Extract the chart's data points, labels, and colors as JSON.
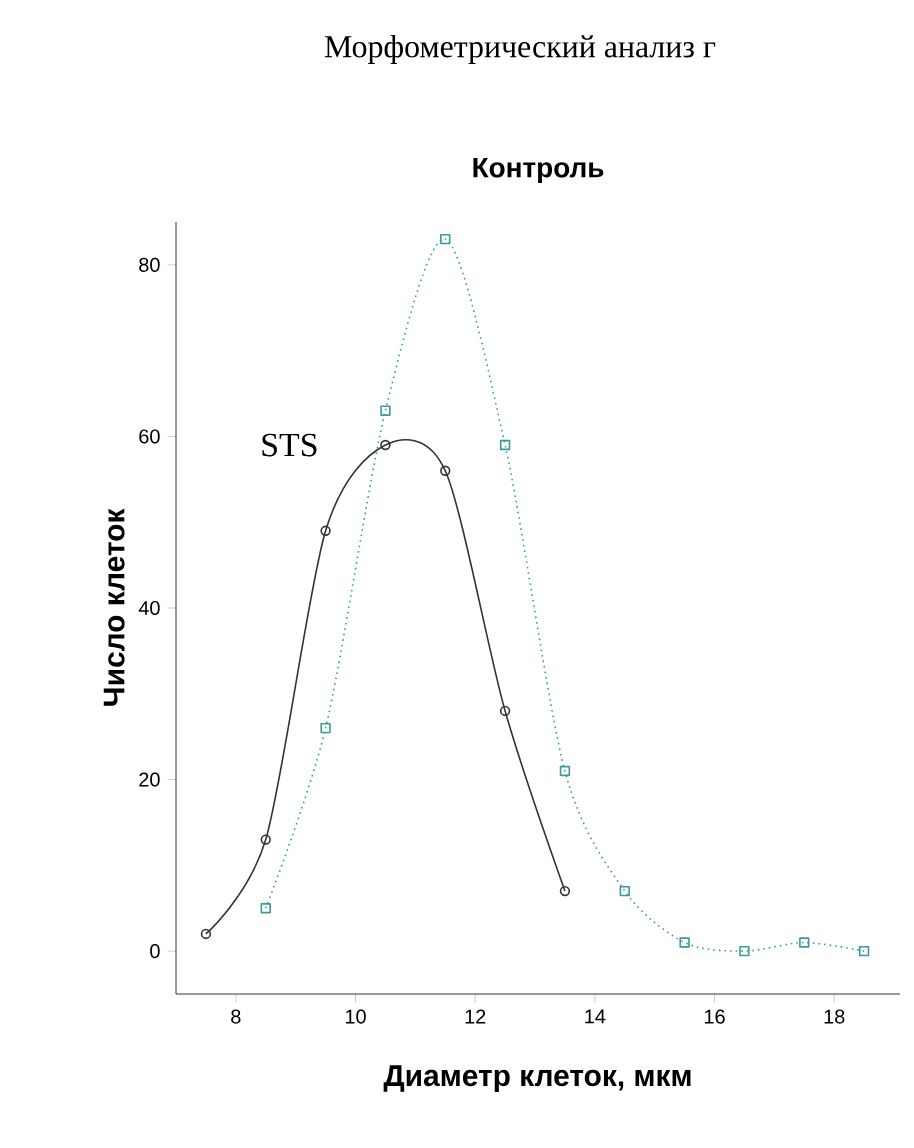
{
  "chart_data": {
    "type": "line",
    "title": "Контроль",
    "xlabel": "Диаметр клеток, мкм",
    "ylabel": "Число клеток",
    "annotations": [
      "Морфометрический анализ г"
    ],
    "xlim": [
      7,
      19.1
    ],
    "ylim": [
      -5,
      85
    ],
    "xticks": [
      8,
      10,
      12,
      14,
      16,
      18
    ],
    "yticks": [
      0,
      20,
      40,
      60,
      80
    ],
    "grid": false,
    "legend": false,
    "series": [
      {
        "name": "STS",
        "color": "#333333",
        "marker": "circle",
        "line_style": "solid",
        "x": [
          7.5,
          8.5,
          9.5,
          10.5,
          11.5,
          12.5,
          13.5
        ],
        "values": [
          2,
          13,
          49,
          59,
          56,
          28,
          7
        ]
      },
      {
        "color": "#3a9a9a",
        "marker": "square",
        "line_style": "dotted",
        "x": [
          8.5,
          9.5,
          10.5,
          11.5,
          12.5,
          13.5,
          14.5,
          15.5,
          16.5,
          17.5,
          18.5
        ],
        "values": [
          5,
          26,
          63,
          83,
          59,
          21,
          7,
          1,
          0,
          1,
          0
        ]
      }
    ]
  }
}
